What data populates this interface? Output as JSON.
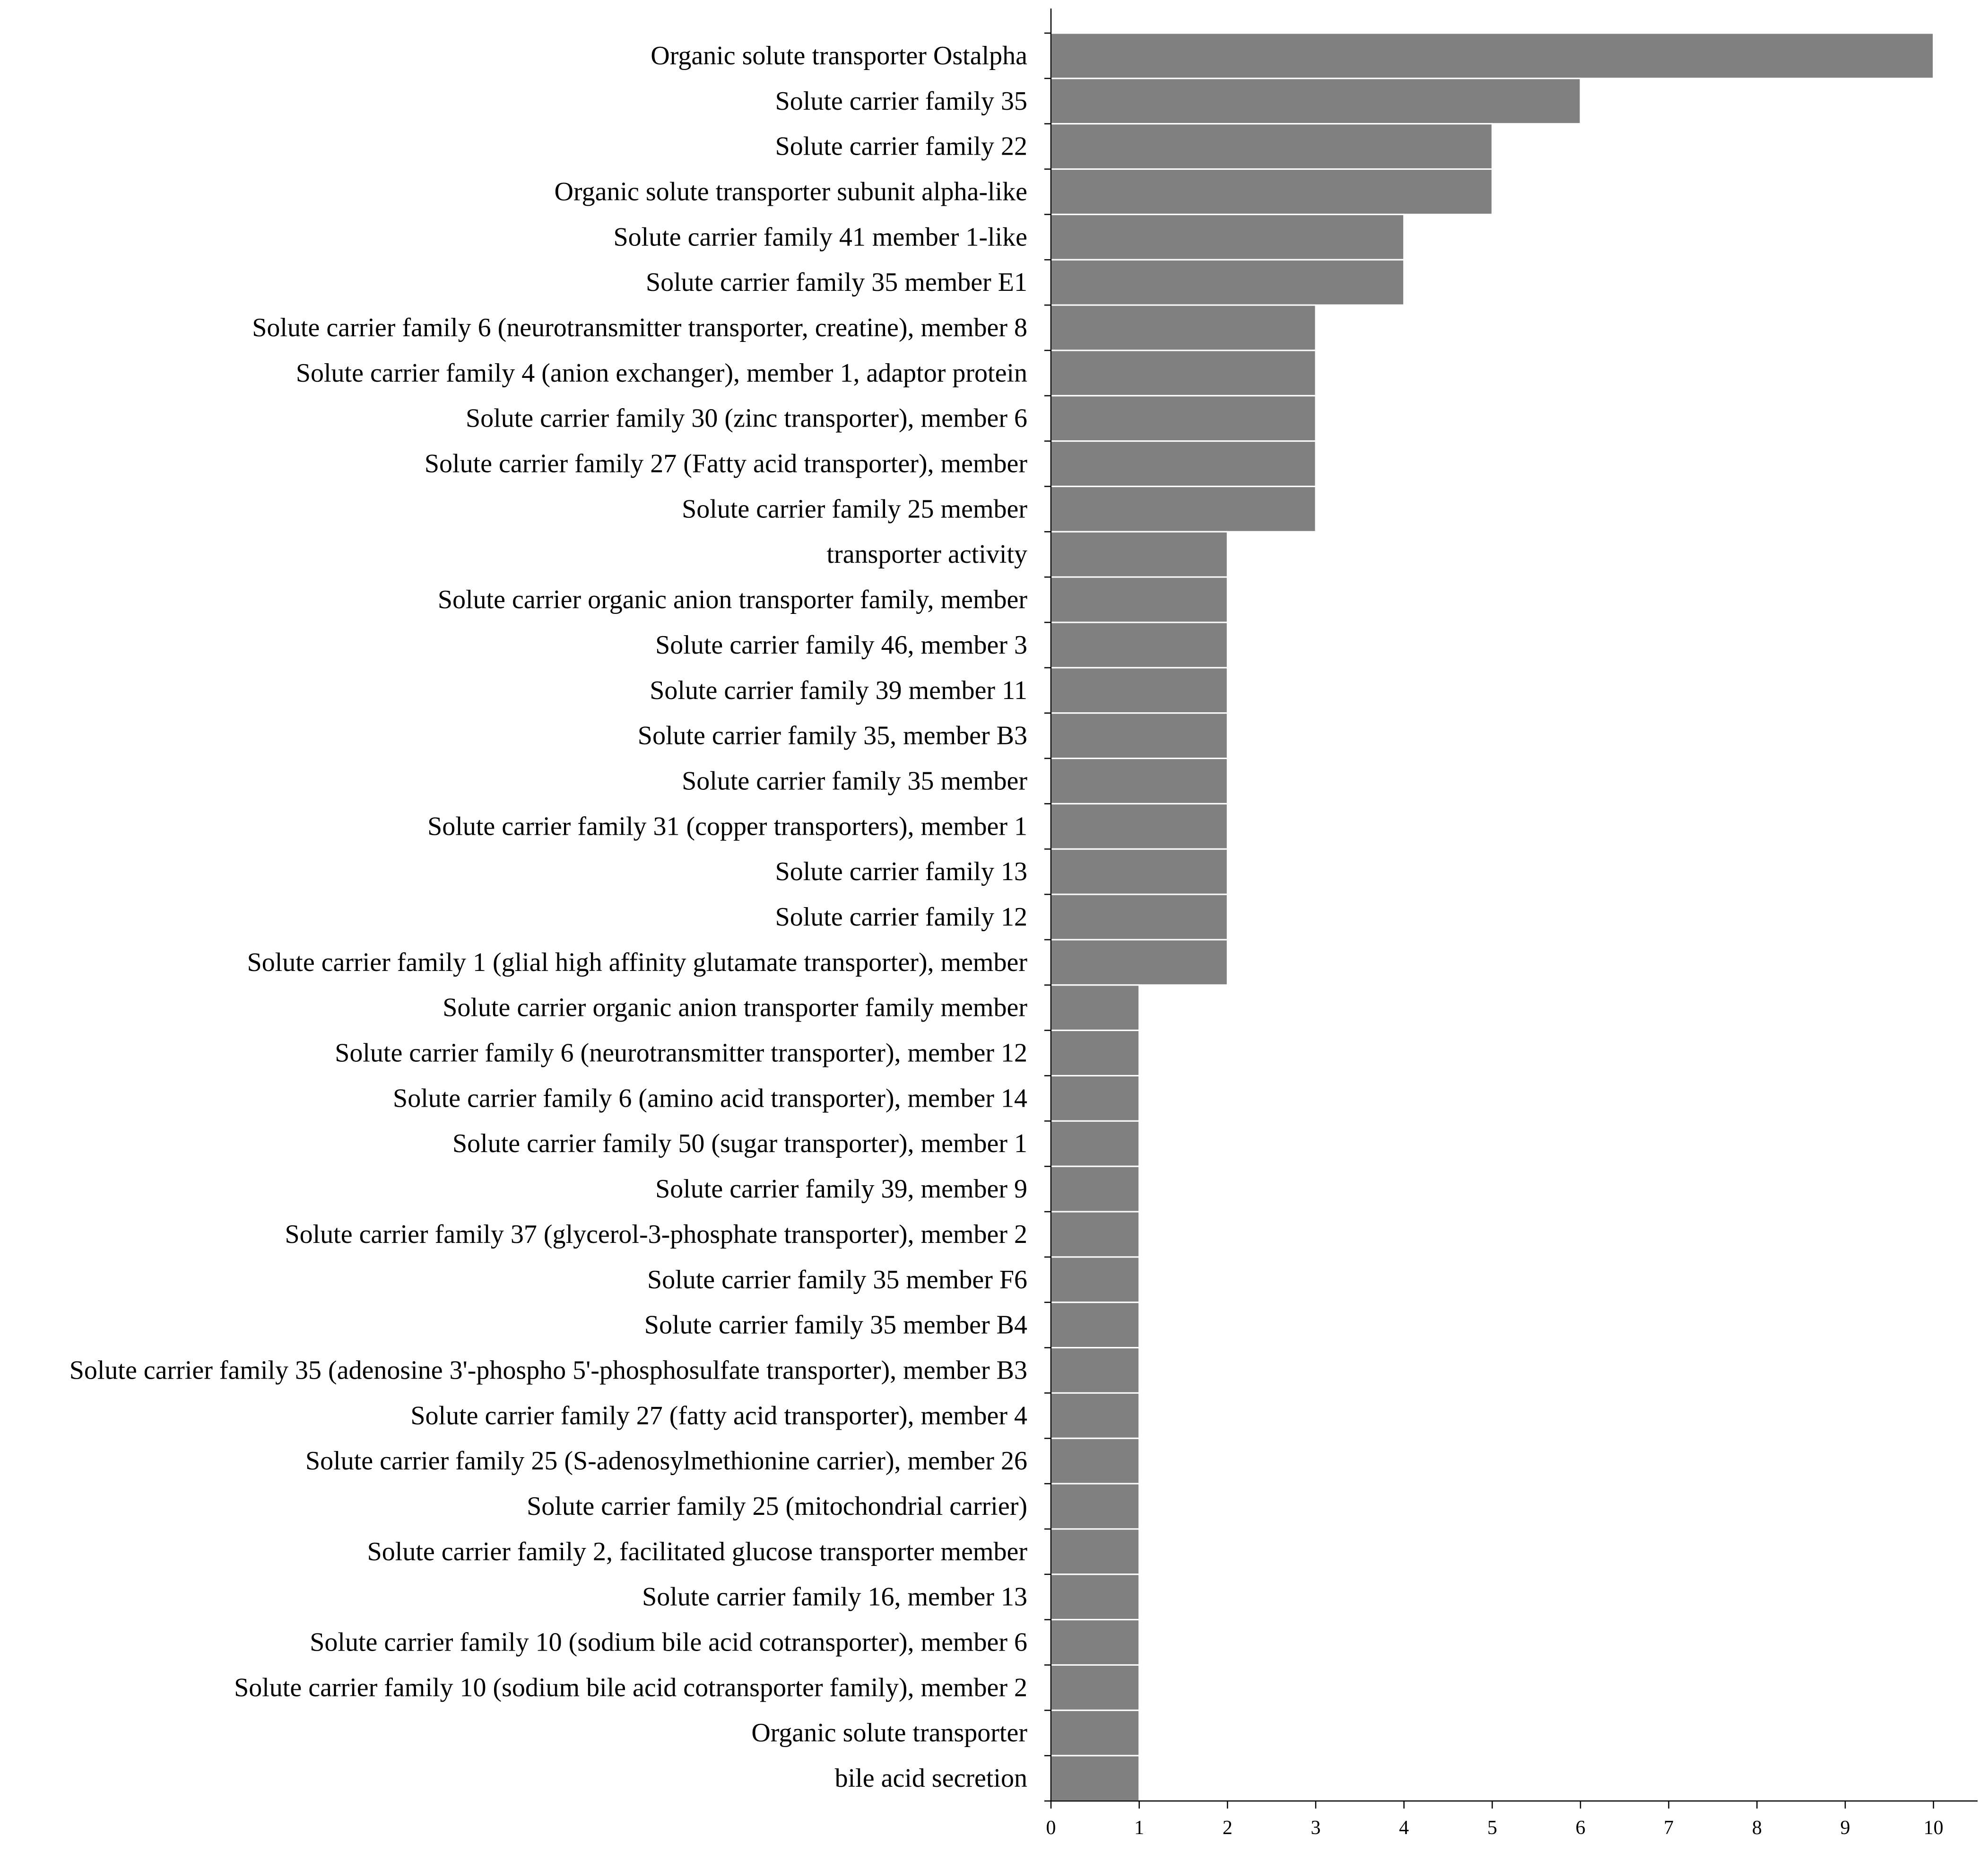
{
  "chart_data": {
    "type": "bar",
    "orientation": "horizontal",
    "title": "",
    "xlabel": "",
    "ylabel": "",
    "xlim": [
      0,
      10.5
    ],
    "xticks": [
      0,
      1,
      2,
      3,
      4,
      5,
      6,
      7,
      8,
      9,
      10
    ],
    "grid": false,
    "legend": "none",
    "colors": {
      "bar": "#808080",
      "bar_edge": "#ffffff",
      "axis": "#000000",
      "text": "#000000"
    },
    "categories": [
      "Organic solute transporter Ostalpha",
      "Solute carrier family 35",
      "Solute carrier family 22",
      "Organic solute transporter subunit alpha-like",
      "Solute carrier family 41 member 1-like",
      "Solute carrier family 35 member E1",
      "Solute carrier family 6 (neurotransmitter transporter, creatine), member 8",
      "Solute carrier family 4 (anion exchanger), member 1, adaptor protein",
      "Solute carrier family 30 (zinc transporter), member 6",
      "Solute carrier family 27 (Fatty acid transporter), member",
      "Solute carrier family 25 member",
      "transporter activity",
      "Solute carrier organic anion transporter family, member",
      "Solute carrier family 46, member 3",
      "Solute carrier family 39 member 11",
      "Solute carrier family 35, member B3",
      "Solute carrier family 35 member",
      "Solute carrier family 31 (copper transporters), member 1",
      "Solute carrier family 13",
      "Solute carrier family 12",
      "Solute carrier family 1 (glial high affinity glutamate transporter), member",
      "Solute carrier organic anion transporter family member",
      "Solute carrier family 6 (neurotransmitter transporter), member 12",
      "Solute carrier family 6 (amino acid transporter), member 14",
      "Solute carrier family 50 (sugar transporter), member 1",
      "Solute carrier family 39, member 9",
      "Solute carrier family 37 (glycerol-3-phosphate transporter), member 2",
      "Solute carrier family 35 member F6",
      "Solute carrier family 35 member B4",
      "Solute carrier family 35 (adenosine 3'-phospho 5'-phosphosulfate transporter), member B3",
      "Solute carrier family 27 (fatty acid transporter), member 4",
      "Solute carrier family 25 (S-adenosylmethionine carrier), member 26",
      "Solute carrier family 25 (mitochondrial carrier)",
      "Solute carrier family 2, facilitated glucose transporter member",
      "Solute carrier family 16, member 13",
      "Solute carrier family 10 (sodium bile acid cotransporter), member 6",
      "Solute carrier family 10 (sodium bile acid cotransporter family), member 2",
      "Organic solute transporter",
      "bile acid secretion"
    ],
    "values": [
      10,
      6,
      5,
      5,
      4,
      4,
      3,
      3,
      3,
      3,
      3,
      2,
      2,
      2,
      2,
      2,
      2,
      2,
      2,
      2,
      2,
      1,
      1,
      1,
      1,
      1,
      1,
      1,
      1,
      1,
      1,
      1,
      1,
      1,
      1,
      1,
      1,
      1,
      1
    ]
  }
}
